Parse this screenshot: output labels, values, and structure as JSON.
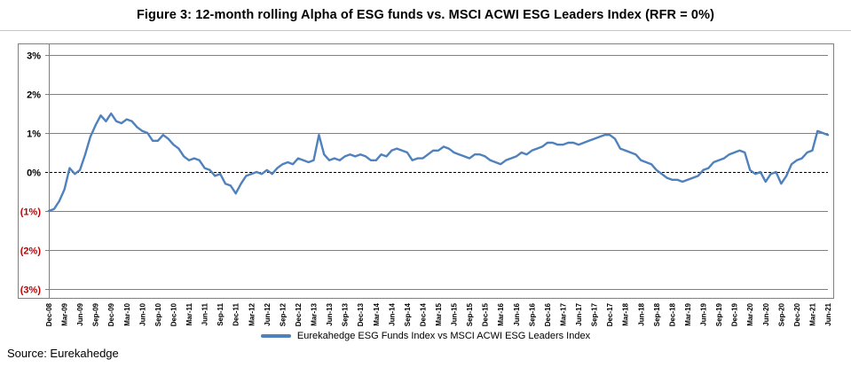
{
  "source": "Source: Eurekahedge",
  "chart_data": {
    "type": "line",
    "title": "Figure 3: 12-month rolling Alpha of ESG funds vs. MSCI ACWI ESG Leaders Index (RFR = 0%)",
    "xlabel": "",
    "ylabel": "",
    "ylim": [
      -3,
      3
    ],
    "grid": "horizontal",
    "legend_position": "bottom",
    "line_color": "#4F81BD",
    "gridline_color": "#808080",
    "zero_line_style": "dashed-black",
    "negative_tick_color": "#C00000",
    "y_ticks": [
      {
        "label": "3%",
        "value": 3,
        "color": "#000000"
      },
      {
        "label": "2%",
        "value": 2,
        "color": "#000000"
      },
      {
        "label": "1%",
        "value": 1,
        "color": "#000000"
      },
      {
        "label": "0%",
        "value": 0,
        "color": "#000000"
      },
      {
        "label": "(1%)",
        "value": -1,
        "color": "#C00000"
      },
      {
        "label": "(2%)",
        "value": -2,
        "color": "#C00000"
      },
      {
        "label": "(3%)",
        "value": -3,
        "color": "#C00000"
      }
    ],
    "x_tick_every": 3,
    "x_tick_labels": [
      "Dec-08",
      "Mar-09",
      "Jun-09",
      "Sep-09",
      "Dec-09",
      "Mar-10",
      "Jun-10",
      "Sep-10",
      "Dec-10",
      "Mar-11",
      "Jun-11",
      "Sep-11",
      "Dec-11",
      "Mar-12",
      "Jun-12",
      "Sep-12",
      "Dec-12",
      "Mar-13",
      "Jun-13",
      "Sep-13",
      "Dec-13",
      "Mar-14",
      "Jun-14",
      "Sep-14",
      "Dec-14",
      "Mar-15",
      "Jun-15",
      "Sep-15",
      "Dec-15",
      "Mar-16",
      "Jun-16",
      "Sep-16",
      "Dec-16",
      "Mar-17",
      "Jun-17",
      "Sep-17",
      "Dec-17",
      "Mar-18",
      "Jun-18",
      "Sep-18",
      "Dec-18",
      "Mar-19",
      "Jun-19",
      "Sep-19",
      "Dec-19",
      "Mar-20",
      "Jun-20",
      "Sep-20",
      "Dec-20",
      "Mar-21",
      "Jun-21"
    ],
    "series": [
      {
        "name": "Eurekahedge ESG Funds Index vs MSCI ACWI ESG Leaders Index",
        "interval": "monthly",
        "values": [
          -1.0,
          -0.95,
          -0.75,
          -0.45,
          0.1,
          -0.05,
          0.05,
          0.45,
          0.9,
          1.2,
          1.45,
          1.3,
          1.5,
          1.3,
          1.25,
          1.35,
          1.3,
          1.15,
          1.05,
          1.0,
          0.8,
          0.8,
          0.95,
          0.85,
          0.7,
          0.6,
          0.4,
          0.3,
          0.35,
          0.3,
          0.1,
          0.05,
          -0.1,
          -0.05,
          -0.3,
          -0.35,
          -0.55,
          -0.3,
          -0.1,
          -0.05,
          0.0,
          -0.05,
          0.05,
          -0.05,
          0.1,
          0.2,
          0.25,
          0.2,
          0.35,
          0.3,
          0.25,
          0.3,
          0.95,
          0.45,
          0.3,
          0.35,
          0.3,
          0.4,
          0.45,
          0.4,
          0.45,
          0.4,
          0.3,
          0.3,
          0.45,
          0.4,
          0.55,
          0.6,
          0.55,
          0.5,
          0.3,
          0.35,
          0.35,
          0.45,
          0.55,
          0.55,
          0.65,
          0.6,
          0.5,
          0.45,
          0.4,
          0.35,
          0.45,
          0.45,
          0.4,
          0.3,
          0.25,
          0.2,
          0.3,
          0.35,
          0.4,
          0.5,
          0.45,
          0.55,
          0.6,
          0.65,
          0.75,
          0.75,
          0.7,
          0.7,
          0.75,
          0.75,
          0.7,
          0.75,
          0.8,
          0.85,
          0.9,
          0.95,
          0.95,
          0.85,
          0.6,
          0.55,
          0.5,
          0.45,
          0.3,
          0.25,
          0.2,
          0.05,
          -0.05,
          -0.15,
          -0.2,
          -0.2,
          -0.25,
          -0.2,
          -0.15,
          -0.1,
          0.05,
          0.1,
          0.25,
          0.3,
          0.35,
          0.45,
          0.5,
          0.55,
          0.5,
          0.05,
          -0.05,
          0.0,
          -0.25,
          -0.05,
          0.0,
          -0.3,
          -0.1,
          0.2,
          0.3,
          0.35,
          0.5,
          0.55,
          1.05,
          1.0,
          0.95
        ]
      }
    ]
  }
}
